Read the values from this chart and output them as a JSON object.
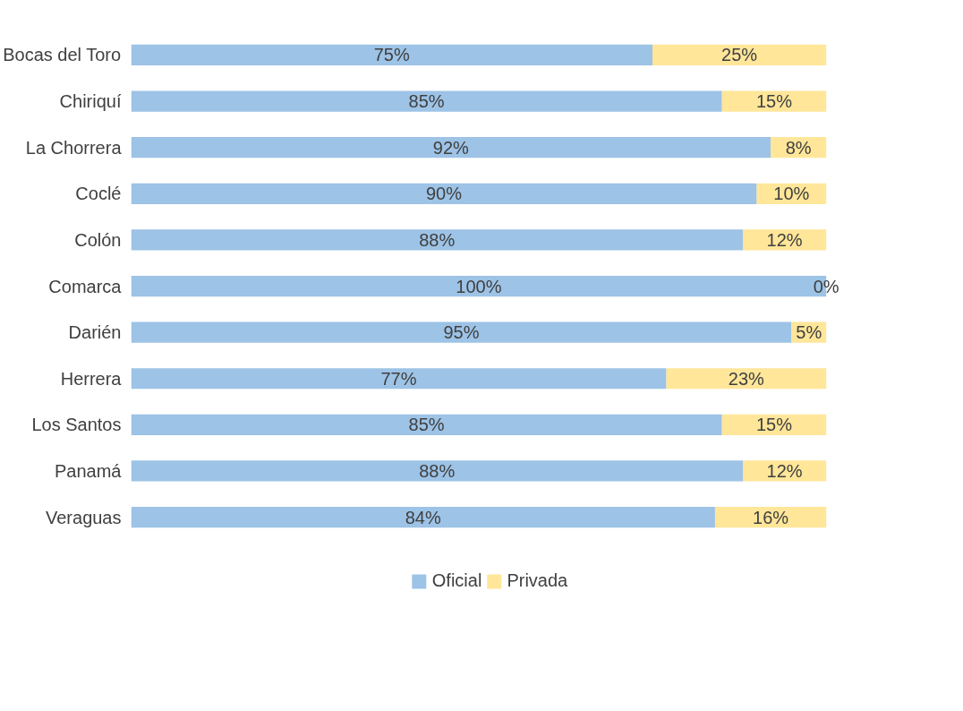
{
  "chart_data": {
    "type": "bar",
    "orientation": "horizontal",
    "stacked": true,
    "categories": [
      "Bocas del Toro",
      "Chiriquí",
      "La Chorrera",
      "Coclé",
      "Colón",
      "Comarca",
      "Darién",
      "Herrera",
      "Los Santos",
      "Panamá",
      "Veraguas"
    ],
    "series": [
      {
        "name": "Oficial",
        "color": "#9dc3e6",
        "values": [
          75,
          85,
          92,
          90,
          88,
          100,
          95,
          77,
          85,
          88,
          84
        ],
        "value_labels": [
          "75%",
          "85%",
          "92%",
          "90%",
          "88%",
          "100%",
          "95%",
          "77%",
          "85%",
          "88%",
          "84%"
        ]
      },
      {
        "name": "Privada",
        "color": "#ffe699",
        "values": [
          25,
          15,
          8,
          10,
          12,
          0,
          5,
          23,
          15,
          12,
          16
        ],
        "value_labels": [
          "25%",
          "15%",
          "8%",
          "10%",
          "12%",
          "0%",
          "5%",
          "23%",
          "15%",
          "12%",
          "16%"
        ]
      }
    ],
    "xlim": [
      0,
      100
    ],
    "tick_labels": "y",
    "legend": "bottom"
  }
}
